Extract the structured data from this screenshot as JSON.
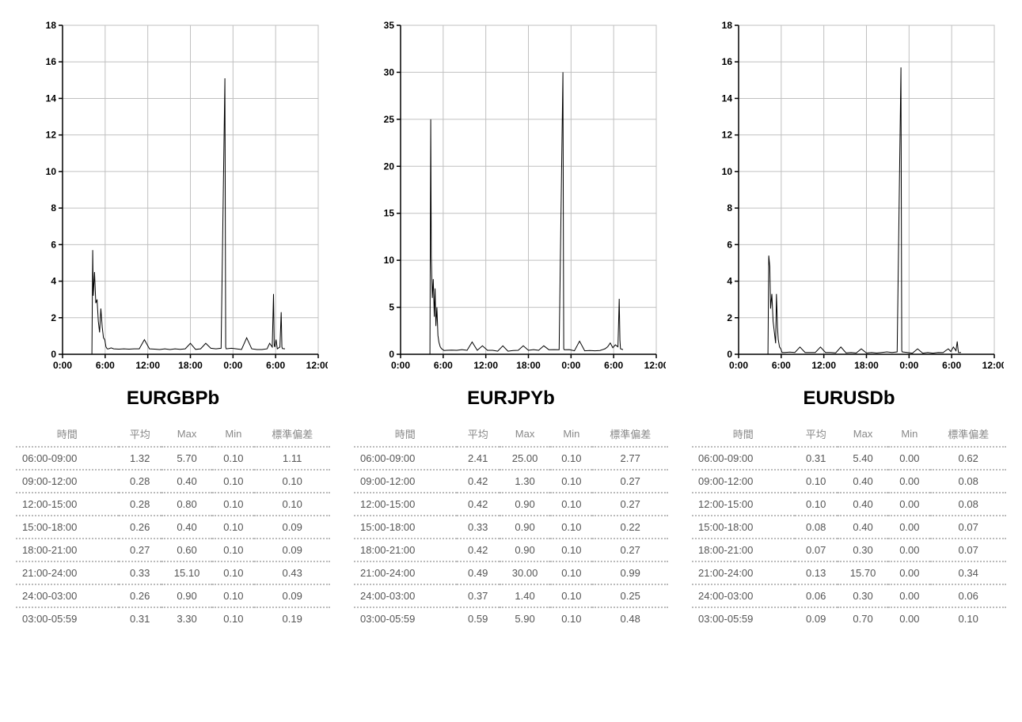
{
  "layout": {
    "background_color": "#ffffff",
    "grid_color": "#c0c0c0",
    "axis_color": "#000000",
    "line_color": "#000000",
    "tick_font_size": 12,
    "tick_font_weight": "bold",
    "title_font_size": 24,
    "title_font_weight": "bold",
    "table_header_color": "#888888",
    "table_cell_color": "#555555",
    "border_style": "dotted"
  },
  "table_headers": {
    "time": "時間",
    "avg": "平均",
    "max": "Max",
    "min": "Min",
    "std": "標準偏差"
  },
  "panels": [
    {
      "title": "EURGBPb",
      "chart": {
        "type": "line",
        "ylim": [
          0,
          18
        ],
        "ytick_step": 2,
        "xticks": [
          "0:00",
          "6:00",
          "12:00",
          "18:00",
          "0:00",
          "6:00",
          "12:00"
        ],
        "x_divisions": 6,
        "series": [
          [
            0,
            0
          ],
          [
            0.115,
            0
          ],
          [
            0.118,
            5.7
          ],
          [
            0.12,
            3.2
          ],
          [
            0.125,
            4.5
          ],
          [
            0.13,
            2.8
          ],
          [
            0.135,
            3.0
          ],
          [
            0.14,
            1.8
          ],
          [
            0.145,
            1.2
          ],
          [
            0.15,
            2.5
          ],
          [
            0.155,
            1.5
          ],
          [
            0.16,
            0.9
          ],
          [
            0.165,
            0.8
          ],
          [
            0.17,
            0.4
          ],
          [
            0.175,
            0.3
          ],
          [
            0.18,
            0.3
          ],
          [
            0.19,
            0.35
          ],
          [
            0.2,
            0.3
          ],
          [
            0.22,
            0.28
          ],
          [
            0.24,
            0.3
          ],
          [
            0.26,
            0.28
          ],
          [
            0.28,
            0.3
          ],
          [
            0.3,
            0.3
          ],
          [
            0.32,
            0.8
          ],
          [
            0.34,
            0.3
          ],
          [
            0.36,
            0.28
          ],
          [
            0.38,
            0.26
          ],
          [
            0.4,
            0.3
          ],
          [
            0.42,
            0.26
          ],
          [
            0.44,
            0.3
          ],
          [
            0.46,
            0.27
          ],
          [
            0.48,
            0.3
          ],
          [
            0.5,
            0.6
          ],
          [
            0.52,
            0.27
          ],
          [
            0.54,
            0.3
          ],
          [
            0.56,
            0.6
          ],
          [
            0.58,
            0.33
          ],
          [
            0.6,
            0.3
          ],
          [
            0.62,
            0.33
          ],
          [
            0.635,
            15.1
          ],
          [
            0.638,
            0.4
          ],
          [
            0.64,
            0.3
          ],
          [
            0.66,
            0.33
          ],
          [
            0.68,
            0.3
          ],
          [
            0.7,
            0.26
          ],
          [
            0.72,
            0.9
          ],
          [
            0.74,
            0.3
          ],
          [
            0.76,
            0.26
          ],
          [
            0.78,
            0.26
          ],
          [
            0.8,
            0.3
          ],
          [
            0.81,
            0.6
          ],
          [
            0.82,
            0.4
          ],
          [
            0.825,
            3.3
          ],
          [
            0.828,
            0.5
          ],
          [
            0.83,
            0.4
          ],
          [
            0.835,
            0.8
          ],
          [
            0.84,
            0.3
          ],
          [
            0.85,
            0.4
          ],
          [
            0.855,
            2.3
          ],
          [
            0.858,
            0.4
          ],
          [
            0.86,
            0.31
          ],
          [
            0.87,
            0.3
          ]
        ]
      },
      "table": {
        "rows": [
          {
            "time": "06:00-09:00",
            "avg": "1.32",
            "max": "5.70",
            "min": "0.10",
            "std": "1.11"
          },
          {
            "time": "09:00-12:00",
            "avg": "0.28",
            "max": "0.40",
            "min": "0.10",
            "std": "0.10"
          },
          {
            "time": "12:00-15:00",
            "avg": "0.28",
            "max": "0.80",
            "min": "0.10",
            "std": "0.10"
          },
          {
            "time": "15:00-18:00",
            "avg": "0.26",
            "max": "0.40",
            "min": "0.10",
            "std": "0.09"
          },
          {
            "time": "18:00-21:00",
            "avg": "0.27",
            "max": "0.60",
            "min": "0.10",
            "std": "0.09"
          },
          {
            "time": "21:00-24:00",
            "avg": "0.33",
            "max": "15.10",
            "min": "0.10",
            "std": "0.43"
          },
          {
            "time": "24:00-03:00",
            "avg": "0.26",
            "max": "0.90",
            "min": "0.10",
            "std": "0.09"
          },
          {
            "time": "03:00-05:59",
            "avg": "0.31",
            "max": "3.30",
            "min": "0.10",
            "std": "0.19"
          }
        ]
      }
    },
    {
      "title": "EURJPYb",
      "chart": {
        "type": "line",
        "ylim": [
          0,
          35
        ],
        "ytick_step": 5,
        "xticks": [
          "0:00",
          "6:00",
          "12:00",
          "18:00",
          "0:00",
          "6:00",
          "12:00"
        ],
        "x_divisions": 6,
        "series": [
          [
            0,
            0
          ],
          [
            0.115,
            0
          ],
          [
            0.118,
            25.0
          ],
          [
            0.12,
            10.5
          ],
          [
            0.124,
            6.0
          ],
          [
            0.128,
            8.0
          ],
          [
            0.132,
            4.0
          ],
          [
            0.135,
            7.0
          ],
          [
            0.138,
            3.0
          ],
          [
            0.142,
            5.0
          ],
          [
            0.146,
            2.0
          ],
          [
            0.15,
            1.3
          ],
          [
            0.155,
            0.8
          ],
          [
            0.16,
            0.6
          ],
          [
            0.17,
            0.4
          ],
          [
            0.18,
            0.42
          ],
          [
            0.2,
            0.45
          ],
          [
            0.22,
            0.42
          ],
          [
            0.24,
            0.5
          ],
          [
            0.26,
            0.42
          ],
          [
            0.28,
            1.3
          ],
          [
            0.3,
            0.42
          ],
          [
            0.32,
            0.9
          ],
          [
            0.34,
            0.42
          ],
          [
            0.36,
            0.42
          ],
          [
            0.38,
            0.33
          ],
          [
            0.4,
            0.9
          ],
          [
            0.42,
            0.33
          ],
          [
            0.44,
            0.4
          ],
          [
            0.46,
            0.42
          ],
          [
            0.48,
            0.9
          ],
          [
            0.5,
            0.42
          ],
          [
            0.52,
            0.5
          ],
          [
            0.54,
            0.42
          ],
          [
            0.56,
            0.9
          ],
          [
            0.58,
            0.49
          ],
          [
            0.6,
            0.5
          ],
          [
            0.62,
            0.49
          ],
          [
            0.635,
            30.0
          ],
          [
            0.638,
            0.6
          ],
          [
            0.64,
            0.49
          ],
          [
            0.66,
            0.5
          ],
          [
            0.68,
            0.37
          ],
          [
            0.7,
            1.4
          ],
          [
            0.72,
            0.37
          ],
          [
            0.74,
            0.4
          ],
          [
            0.76,
            0.37
          ],
          [
            0.78,
            0.4
          ],
          [
            0.8,
            0.59
          ],
          [
            0.81,
            0.8
          ],
          [
            0.82,
            1.2
          ],
          [
            0.83,
            0.7
          ],
          [
            0.84,
            1.0
          ],
          [
            0.85,
            0.8
          ],
          [
            0.855,
            5.9
          ],
          [
            0.858,
            1.5
          ],
          [
            0.86,
            0.59
          ],
          [
            0.87,
            0.5
          ]
        ]
      },
      "table": {
        "rows": [
          {
            "time": "06:00-09:00",
            "avg": "2.41",
            "max": "25.00",
            "min": "0.10",
            "std": "2.77"
          },
          {
            "time": "09:00-12:00",
            "avg": "0.42",
            "max": "1.30",
            "min": "0.10",
            "std": "0.27"
          },
          {
            "time": "12:00-15:00",
            "avg": "0.42",
            "max": "0.90",
            "min": "0.10",
            "std": "0.27"
          },
          {
            "time": "15:00-18:00",
            "avg": "0.33",
            "max": "0.90",
            "min": "0.10",
            "std": "0.22"
          },
          {
            "time": "18:00-21:00",
            "avg": "0.42",
            "max": "0.90",
            "min": "0.10",
            "std": "0.27"
          },
          {
            "time": "21:00-24:00",
            "avg": "0.49",
            "max": "30.00",
            "min": "0.10",
            "std": "0.99"
          },
          {
            "time": "24:00-03:00",
            "avg": "0.37",
            "max": "1.40",
            "min": "0.10",
            "std": "0.25"
          },
          {
            "time": "03:00-05:59",
            "avg": "0.59",
            "max": "5.90",
            "min": "0.10",
            "std": "0.48"
          }
        ]
      }
    },
    {
      "title": "EURUSDb",
      "chart": {
        "type": "line",
        "ylim": [
          0,
          18
        ],
        "ytick_step": 2,
        "xticks": [
          "0:00",
          "6:00",
          "12:00",
          "18:00",
          "0:00",
          "6:00",
          "12:00"
        ],
        "x_divisions": 6,
        "series": [
          [
            0,
            0
          ],
          [
            0.115,
            0
          ],
          [
            0.118,
            5.4
          ],
          [
            0.122,
            4.8
          ],
          [
            0.125,
            2.5
          ],
          [
            0.13,
            3.3
          ],
          [
            0.135,
            1.8
          ],
          [
            0.14,
            1.2
          ],
          [
            0.145,
            0.6
          ],
          [
            0.148,
            3.3
          ],
          [
            0.152,
            1.5
          ],
          [
            0.155,
            0.8
          ],
          [
            0.16,
            0.4
          ],
          [
            0.165,
            0.3
          ],
          [
            0.17,
            0.1
          ],
          [
            0.18,
            0.1
          ],
          [
            0.2,
            0.12
          ],
          [
            0.22,
            0.1
          ],
          [
            0.24,
            0.4
          ],
          [
            0.26,
            0.1
          ],
          [
            0.28,
            0.1
          ],
          [
            0.3,
            0.1
          ],
          [
            0.32,
            0.4
          ],
          [
            0.34,
            0.1
          ],
          [
            0.36,
            0.1
          ],
          [
            0.38,
            0.08
          ],
          [
            0.4,
            0.4
          ],
          [
            0.42,
            0.08
          ],
          [
            0.44,
            0.1
          ],
          [
            0.46,
            0.07
          ],
          [
            0.48,
            0.3
          ],
          [
            0.5,
            0.07
          ],
          [
            0.52,
            0.1
          ],
          [
            0.54,
            0.07
          ],
          [
            0.56,
            0.1
          ],
          [
            0.58,
            0.13
          ],
          [
            0.6,
            0.1
          ],
          [
            0.62,
            0.13
          ],
          [
            0.635,
            15.7
          ],
          [
            0.638,
            0.2
          ],
          [
            0.64,
            0.13
          ],
          [
            0.66,
            0.1
          ],
          [
            0.68,
            0.06
          ],
          [
            0.7,
            0.3
          ],
          [
            0.72,
            0.06
          ],
          [
            0.74,
            0.1
          ],
          [
            0.76,
            0.06
          ],
          [
            0.78,
            0.1
          ],
          [
            0.8,
            0.09
          ],
          [
            0.81,
            0.2
          ],
          [
            0.82,
            0.3
          ],
          [
            0.83,
            0.15
          ],
          [
            0.84,
            0.4
          ],
          [
            0.85,
            0.2
          ],
          [
            0.855,
            0.7
          ],
          [
            0.858,
            0.3
          ],
          [
            0.86,
            0.09
          ],
          [
            0.87,
            0.1
          ]
        ]
      },
      "table": {
        "rows": [
          {
            "time": "06:00-09:00",
            "avg": "0.31",
            "max": "5.40",
            "min": "0.00",
            "std": "0.62"
          },
          {
            "time": "09:00-12:00",
            "avg": "0.10",
            "max": "0.40",
            "min": "0.00",
            "std": "0.08"
          },
          {
            "time": "12:00-15:00",
            "avg": "0.10",
            "max": "0.40",
            "min": "0.00",
            "std": "0.08"
          },
          {
            "time": "15:00-18:00",
            "avg": "0.08",
            "max": "0.40",
            "min": "0.00",
            "std": "0.07"
          },
          {
            "time": "18:00-21:00",
            "avg": "0.07",
            "max": "0.30",
            "min": "0.00",
            "std": "0.07"
          },
          {
            "time": "21:00-24:00",
            "avg": "0.13",
            "max": "15.70",
            "min": "0.00",
            "std": "0.34"
          },
          {
            "time": "24:00-03:00",
            "avg": "0.06",
            "max": "0.30",
            "min": "0.00",
            "std": "0.06"
          },
          {
            "time": "03:00-05:59",
            "avg": "0.09",
            "max": "0.70",
            "min": "0.00",
            "std": "0.10"
          }
        ]
      }
    }
  ]
}
